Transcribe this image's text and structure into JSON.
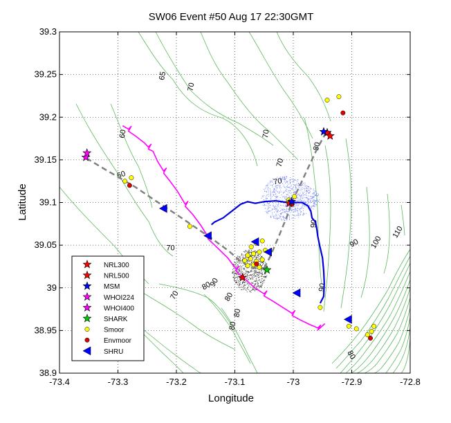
{
  "chart_data": {
    "type": "scatter",
    "title": "SW06 Event #50 Aug 17 22:30GMT",
    "xlabel": "Longitude",
    "ylabel": "Latitude",
    "xlim": [
      -73.4,
      -72.8
    ],
    "ylim": [
      38.9,
      39.3
    ],
    "xticks": [
      -73.4,
      -73.3,
      -73.2,
      -73.1,
      -73.0,
      -72.9,
      -72.8
    ],
    "xtick_labels": [
      "-73.4",
      "-73.3",
      "-73.2",
      "-73.1",
      "-73",
      "-72.9",
      "-72.8"
    ],
    "yticks": [
      38.9,
      38.95,
      39.0,
      39.05,
      39.1,
      39.15,
      39.2,
      39.25,
      39.3
    ],
    "ytick_labels": [
      "38.9",
      "38.95",
      "39",
      "39.05",
      "39.1",
      "39.15",
      "39.2",
      "39.25",
      "39.3"
    ],
    "grid": true,
    "legend_position": "bottom-left",
    "colors": {
      "contour": "#5cb85c",
      "magenta_track": "#ff00ff",
      "blue_track": "#0000dd",
      "dashed_line": "#808080",
      "smoor": "#ffff00",
      "envmoor": "#dd0000",
      "shru": "#0000ff",
      "shark": "#00cc00"
    },
    "legend": [
      {
        "label": "NRL300",
        "marker": "star",
        "color": "#ff0000"
      },
      {
        "label": "NRL500",
        "marker": "star",
        "color": "#ff0000"
      },
      {
        "label": "MSM",
        "marker": "star",
        "color": "#0000ff"
      },
      {
        "label": "WHOI224",
        "marker": "star",
        "color": "#ff00ff"
      },
      {
        "label": "WHOI400",
        "marker": "star",
        "color": "#ff00ff"
      },
      {
        "label": "SHARK",
        "marker": "star",
        "color": "#00cc00"
      },
      {
        "label": "Smoor",
        "marker": "circle",
        "color": "#ffff00"
      },
      {
        "label": "Envmoor",
        "marker": "circle",
        "color": "#dd0000"
      },
      {
        "label": "SHRU",
        "marker": "triangle-left",
        "color": "#0000ff"
      }
    ],
    "contour_labels": [
      {
        "text": "65",
        "x": -73.22,
        "y": 39.248,
        "rotate": -80
      },
      {
        "text": "70",
        "x": -73.171,
        "y": 39.235,
        "rotate": -80
      },
      {
        "text": "70",
        "x": -73.043,
        "y": 39.18,
        "rotate": -80
      },
      {
        "text": "70",
        "x": -73.019,
        "y": 39.146,
        "rotate": -75
      },
      {
        "text": "70",
        "x": -73.026,
        "y": 39.122,
        "rotate": -10
      },
      {
        "text": "80",
        "x": -72.956,
        "y": 39.165,
        "rotate": -75
      },
      {
        "text": "60",
        "x": -73.288,
        "y": 39.18,
        "rotate": -80
      },
      {
        "text": "60",
        "x": -73.293,
        "y": 39.13,
        "rotate": -20
      },
      {
        "text": "70",
        "x": -73.21,
        "y": 39.044,
        "rotate": 0
      },
      {
        "text": "70",
        "x": -73.2,
        "y": 38.99,
        "rotate": -60
      },
      {
        "text": "70",
        "x": -73.27,
        "y": 38.943,
        "rotate": -70
      },
      {
        "text": "80",
        "x": -73.147,
        "y": 39.0,
        "rotate": -30
      },
      {
        "text": "90",
        "x": -73.132,
        "y": 39.005,
        "rotate": -60
      },
      {
        "text": "80",
        "x": -73.107,
        "y": 38.988,
        "rotate": -60
      },
      {
        "text": "80",
        "x": -73.092,
        "y": 38.97,
        "rotate": -80
      },
      {
        "text": "80",
        "x": -73.1,
        "y": 38.955,
        "rotate": -80
      },
      {
        "text": "90",
        "x": -72.961,
        "y": 39.075,
        "rotate": -85
      },
      {
        "text": "90",
        "x": -72.947,
        "y": 39.0,
        "rotate": -80
      },
      {
        "text": "90",
        "x": -72.894,
        "y": 39.05,
        "rotate": -30
      },
      {
        "text": "100",
        "x": -72.855,
        "y": 39.052,
        "rotate": -60
      },
      {
        "text": "110",
        "x": -72.818,
        "y": 39.064,
        "rotate": -60
      },
      {
        "text": "80",
        "x": -72.904,
        "y": 38.92,
        "rotate": 60
      }
    ],
    "series": [
      {
        "name": "NRL300",
        "marker": "star",
        "color": "#ff0000",
        "points": [
          [
            -72.942,
            39.182
          ],
          [
            -73.087,
            39.012
          ]
        ]
      },
      {
        "name": "NRL500",
        "marker": "star",
        "color": "#ff0000",
        "points": [
          [
            -72.937,
            39.178
          ],
          [
            -73.007,
            39.099
          ]
        ]
      },
      {
        "name": "MSM",
        "marker": "star",
        "color": "#0000ff",
        "points": [
          [
            -72.948,
            39.183
          ],
          [
            -73.003,
            39.101
          ]
        ]
      },
      {
        "name": "WHOI224",
        "marker": "star",
        "color": "#ff00ff",
        "points": [
          [
            -73.355,
            39.153
          ]
        ]
      },
      {
        "name": "WHOI400",
        "marker": "star",
        "color": "#ff00ff",
        "points": [
          [
            -73.353,
            39.158
          ]
        ]
      },
      {
        "name": "SHARK",
        "marker": "star",
        "color": "#00cc00",
        "points": [
          [
            -73.045,
            39.021
          ]
        ]
      },
      {
        "name": "Smoor",
        "marker": "circle",
        "color": "#ffff00",
        "points": [
          [
            -73.288,
            39.125
          ],
          [
            -73.277,
            39.129
          ],
          [
            -73.177,
            39.072
          ],
          [
            -73.008,
            39.103
          ],
          [
            -72.998,
            39.107
          ],
          [
            -72.942,
            39.22
          ],
          [
            -72.922,
            39.224
          ],
          [
            -73.072,
            39.048
          ],
          [
            -73.063,
            39.052
          ],
          [
            -73.053,
            39.055
          ],
          [
            -73.078,
            39.038
          ],
          [
            -73.068,
            39.04
          ],
          [
            -73.058,
            39.042
          ],
          [
            -73.048,
            39.044
          ],
          [
            -73.083,
            39.032
          ],
          [
            -73.073,
            39.034
          ],
          [
            -73.063,
            39.031
          ],
          [
            -73.053,
            39.033
          ],
          [
            -73.078,
            39.026
          ],
          [
            -73.068,
            39.027
          ],
          [
            -73.058,
            39.024
          ],
          [
            -72.954,
            38.977
          ],
          [
            -72.905,
            38.955
          ],
          [
            -72.892,
            38.952
          ],
          [
            -72.873,
            38.945
          ],
          [
            -72.866,
            38.949
          ],
          [
            -72.862,
            38.955
          ]
        ]
      },
      {
        "name": "Envmoor",
        "marker": "circle",
        "color": "#dd0000",
        "points": [
          [
            -72.915,
            39.205
          ],
          [
            -73.28,
            39.12
          ],
          [
            -73.063,
            39.028
          ],
          [
            -73.002,
            39.098
          ],
          [
            -72.868,
            38.941
          ]
        ]
      },
      {
        "name": "SHRU",
        "marker": "triangle-left",
        "color": "#0000ff",
        "points": [
          [
            -73.222,
            39.093
          ],
          [
            -73.146,
            39.061
          ],
          [
            -73.065,
            39.054
          ],
          [
            -73.043,
            39.042
          ],
          [
            -72.994,
            38.994
          ],
          [
            -72.906,
            38.963
          ]
        ]
      }
    ],
    "tracks": [
      {
        "style": "magenta",
        "points": [
          [
            -73.292,
            39.19
          ],
          [
            -73.282,
            39.186
          ],
          [
            -73.27,
            39.178
          ],
          [
            -73.255,
            39.17
          ],
          [
            -73.248,
            39.165
          ],
          [
            -73.24,
            39.16
          ],
          [
            -73.232,
            39.148
          ],
          [
            -73.222,
            39.137
          ],
          [
            -73.212,
            39.126
          ],
          [
            -73.198,
            39.113
          ],
          [
            -73.185,
            39.098
          ],
          [
            -73.172,
            39.086
          ],
          [
            -73.158,
            39.073
          ],
          [
            -73.146,
            39.06
          ],
          [
            -73.13,
            39.047
          ],
          [
            -73.112,
            39.035
          ],
          [
            -73.098,
            39.022
          ],
          [
            -73.082,
            39.01
          ],
          [
            -73.066,
            39.0
          ],
          [
            -73.05,
            38.993
          ],
          [
            -73.034,
            38.984
          ],
          [
            -73.018,
            38.977
          ],
          [
            -73.002,
            38.97
          ],
          [
            -72.987,
            38.962
          ],
          [
            -72.972,
            38.957
          ],
          [
            -72.958,
            38.953
          ],
          [
            -72.946,
            38.958
          ]
        ]
      },
      {
        "style": "blue",
        "points": [
          [
            -73.14,
            39.074
          ],
          [
            -73.135,
            39.077
          ],
          [
            -73.12,
            39.082
          ],
          [
            -73.105,
            39.09
          ],
          [
            -73.09,
            39.098
          ],
          [
            -73.078,
            39.101
          ],
          [
            -73.065,
            39.099
          ],
          [
            -73.05,
            39.101
          ],
          [
            -73.03,
            39.102
          ],
          [
            -73.01,
            39.1
          ],
          [
            -72.995,
            39.1
          ],
          [
            -72.985,
            39.1
          ],
          [
            -72.975,
            39.096
          ],
          [
            -72.97,
            39.09
          ],
          [
            -72.968,
            39.082
          ],
          [
            -72.962,
            39.077
          ],
          [
            -72.96,
            39.07
          ],
          [
            -72.958,
            39.06
          ],
          [
            -72.955,
            39.05
          ],
          [
            -72.95,
            39.035
          ],
          [
            -72.948,
            39.02
          ],
          [
            -72.947,
            39.005
          ],
          [
            -72.948,
            38.99
          ],
          [
            -72.954,
            38.982
          ]
        ]
      }
    ],
    "dashed_lines": [
      [
        [
          -73.354,
          39.152
        ],
        [
          -73.33,
          39.142
        ],
        [
          -73.3,
          39.13
        ],
        [
          -73.27,
          39.118
        ],
        [
          -73.24,
          39.104
        ],
        [
          -73.2,
          39.086
        ],
        [
          -73.17,
          39.072
        ],
        [
          -73.14,
          39.058
        ],
        [
          -73.11,
          39.043
        ],
        [
          -73.09,
          39.031
        ],
        [
          -73.07,
          39.023
        ],
        [
          -73.05,
          39.023
        ]
      ],
      [
        [
          -73.05,
          39.023
        ],
        [
          -73.04,
          39.036
        ],
        [
          -73.025,
          39.06
        ],
        [
          -73.01,
          39.085
        ],
        [
          -73.003,
          39.1
        ],
        [
          -72.99,
          39.118
        ],
        [
          -72.975,
          39.14
        ],
        [
          -72.96,
          39.162
        ],
        [
          -72.944,
          39.182
        ]
      ]
    ]
  }
}
